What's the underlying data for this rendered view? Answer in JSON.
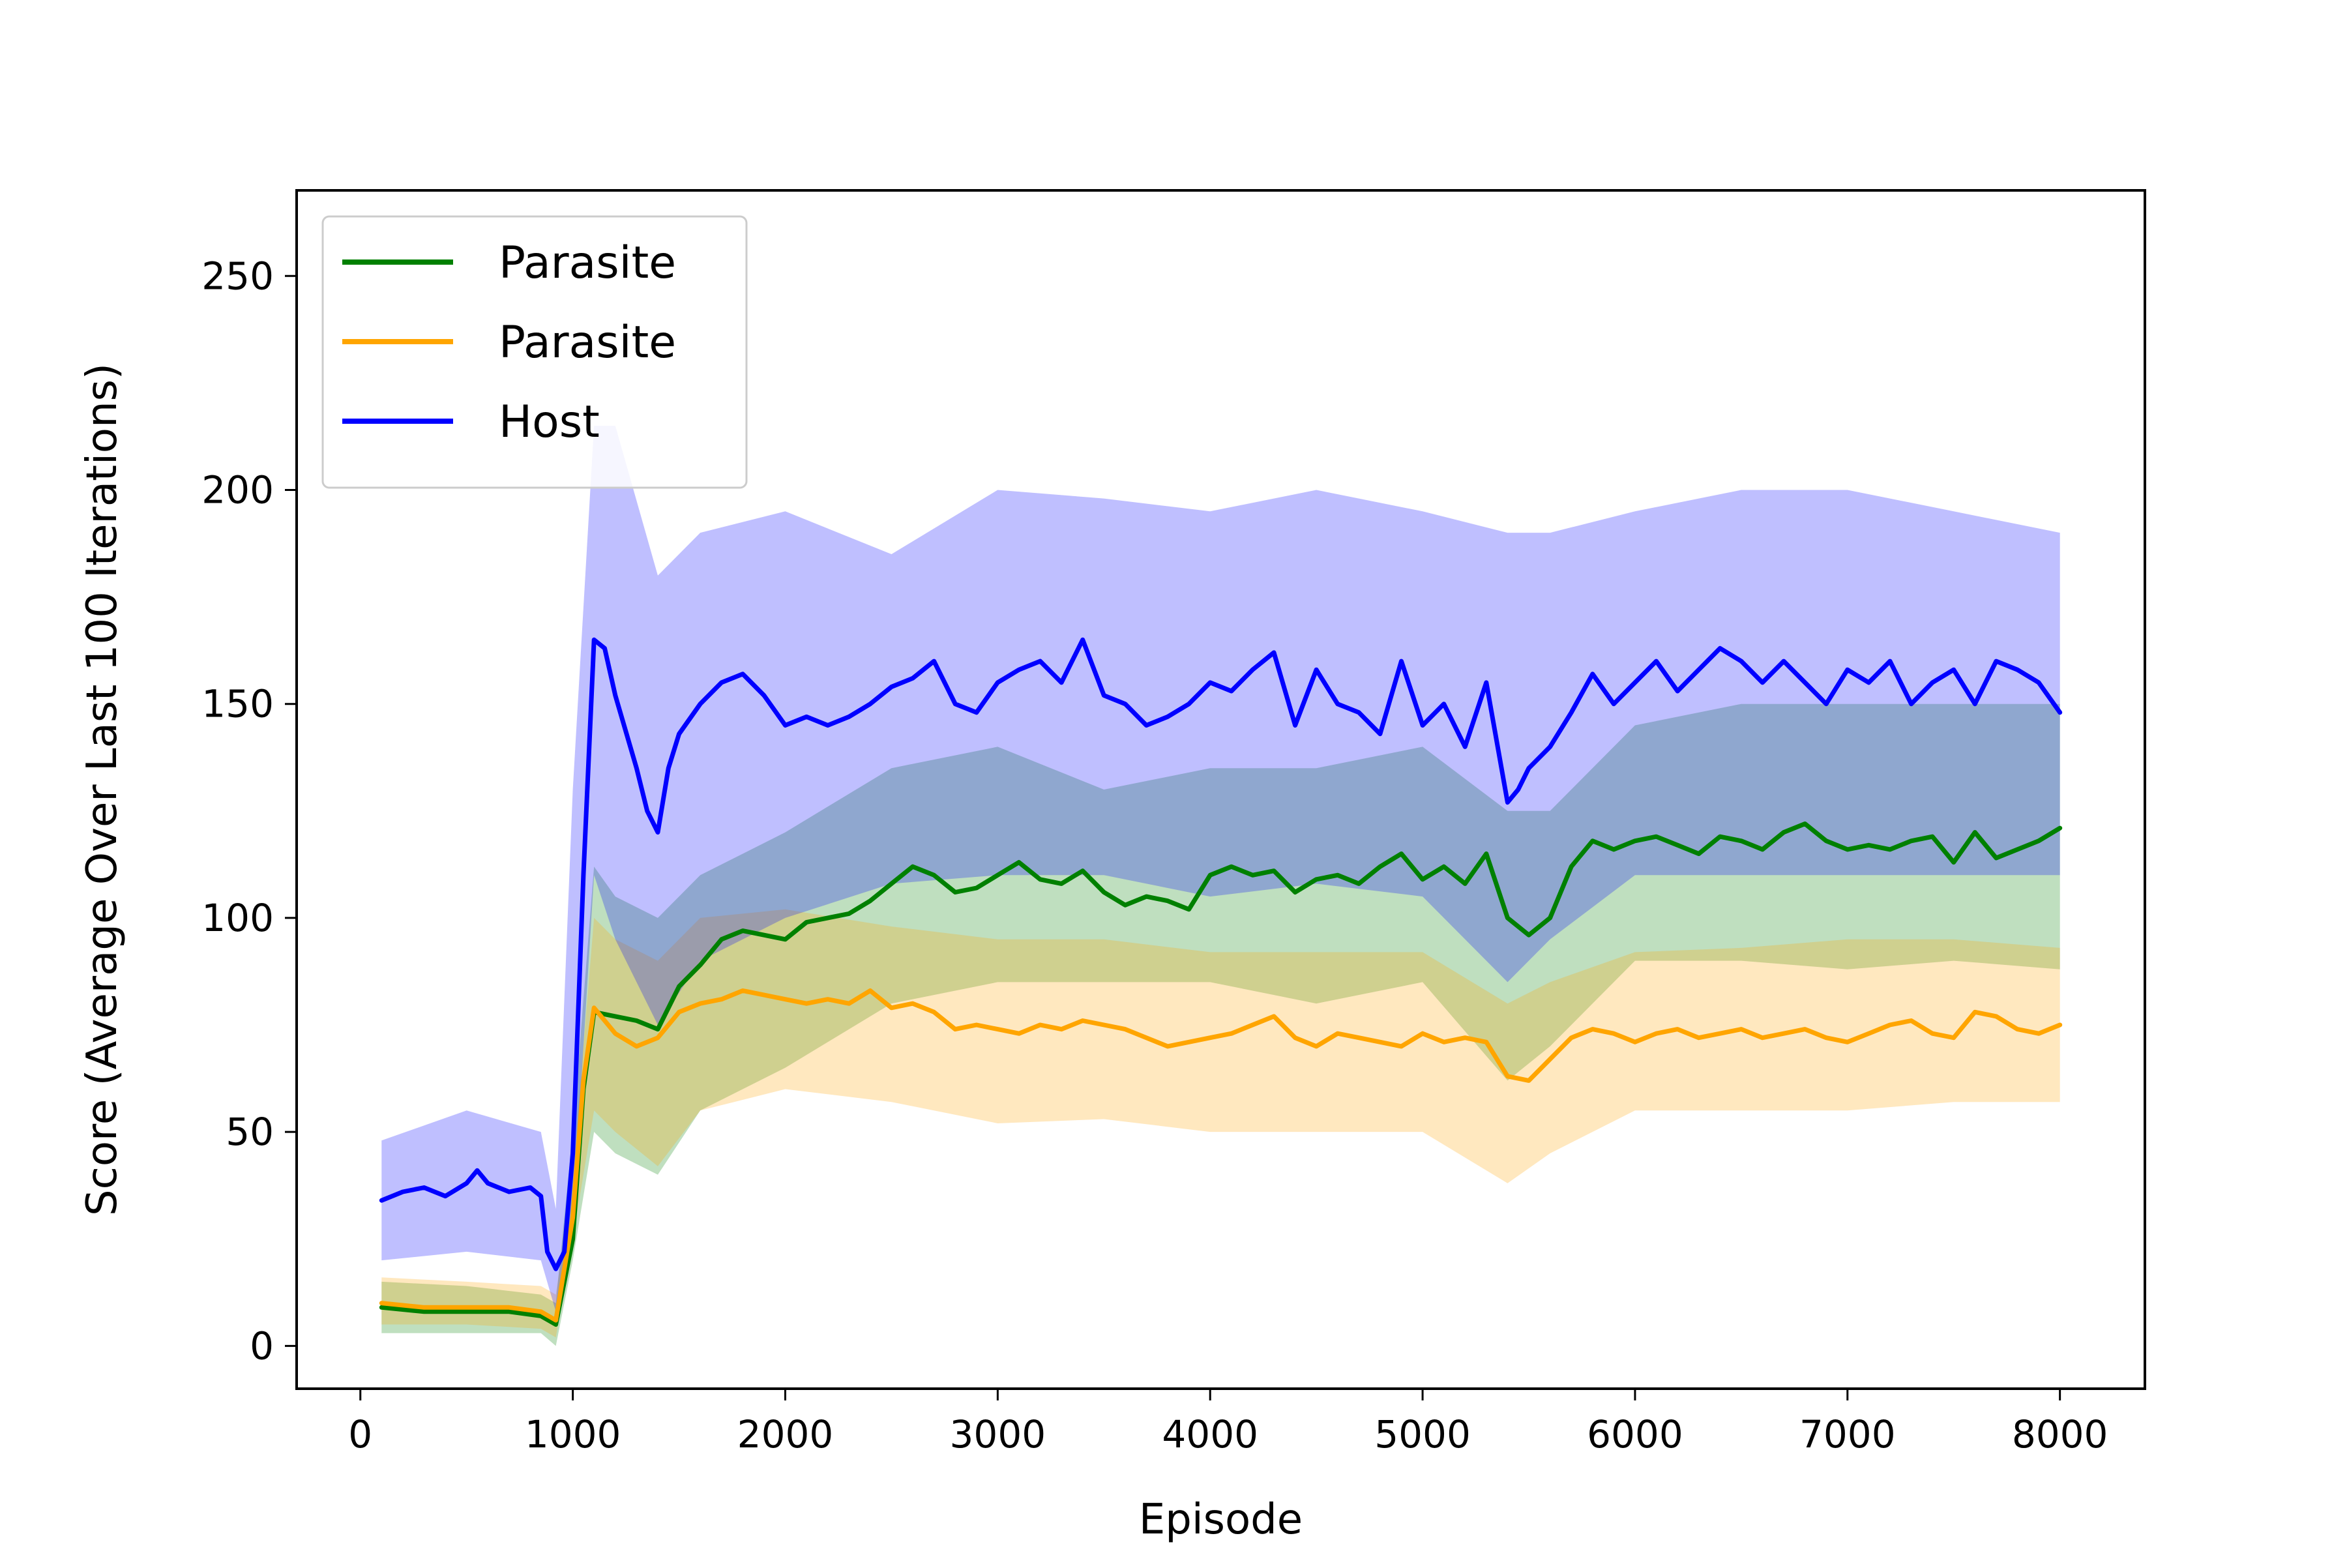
{
  "chart_data": {
    "type": "line",
    "title": "",
    "xlabel": "Episode",
    "ylabel": "Score (Average Over Last 100 Iterations)",
    "xlim": [
      -300,
      8400
    ],
    "ylim": [
      -10,
      270
    ],
    "xticks": [
      0,
      1000,
      2000,
      3000,
      4000,
      5000,
      6000,
      7000,
      8000
    ],
    "yticks": [
      0,
      50,
      100,
      150,
      200,
      250
    ],
    "legend_position": "top-left",
    "grid": false,
    "series": [
      {
        "name": "Parasite",
        "color": "#008000",
        "x": [
          100,
          300,
          500,
          700,
          850,
          920,
          1000,
          1050,
          1100,
          1200,
          1300,
          1400,
          1500,
          1600,
          1700,
          1800,
          1900,
          2000,
          2100,
          2200,
          2300,
          2400,
          2500,
          2600,
          2700,
          2800,
          2900,
          3000,
          3100,
          3200,
          3300,
          3400,
          3500,
          3600,
          3700,
          3800,
          3900,
          4000,
          4100,
          4200,
          4300,
          4400,
          4500,
          4600,
          4700,
          4800,
          4900,
          5000,
          5100,
          5200,
          5300,
          5400,
          5500,
          5600,
          5700,
          5800,
          5900,
          6000,
          6100,
          6200,
          6300,
          6400,
          6500,
          6600,
          6700,
          6800,
          6900,
          7000,
          7100,
          7200,
          7300,
          7400,
          7500,
          7600,
          7700,
          7800,
          7900,
          8000
        ],
        "y": [
          9,
          8,
          8,
          8,
          7,
          5,
          25,
          60,
          78,
          77,
          76,
          74,
          84,
          89,
          95,
          97,
          96,
          95,
          99,
          100,
          101,
          104,
          108,
          112,
          110,
          106,
          107,
          110,
          113,
          109,
          108,
          111,
          106,
          103,
          105,
          104,
          102,
          110,
          112,
          110,
          111,
          106,
          109,
          110,
          108,
          112,
          115,
          109,
          112,
          108,
          115,
          100,
          96,
          100,
          112,
          118,
          116,
          118,
          119,
          117,
          115,
          119,
          118,
          116,
          120,
          122,
          118,
          116,
          117,
          116,
          118,
          119,
          113,
          120,
          114,
          116,
          118,
          121
        ]
      },
      {
        "name": "Parasite",
        "color": "#FFA500",
        "x": [
          100,
          300,
          500,
          700,
          850,
          920,
          1000,
          1050,
          1100,
          1200,
          1300,
          1400,
          1500,
          1600,
          1700,
          1800,
          1900,
          2000,
          2100,
          2200,
          2300,
          2400,
          2500,
          2600,
          2700,
          2800,
          2900,
          3000,
          3100,
          3200,
          3300,
          3400,
          3500,
          3600,
          3700,
          3800,
          3900,
          4000,
          4100,
          4200,
          4300,
          4400,
          4500,
          4600,
          4700,
          4800,
          4900,
          5000,
          5100,
          5200,
          5300,
          5400,
          5500,
          5600,
          5700,
          5800,
          5900,
          6000,
          6100,
          6200,
          6300,
          6400,
          6500,
          6600,
          6700,
          6800,
          6900,
          7000,
          7100,
          7200,
          7300,
          7400,
          7500,
          7600,
          7700,
          7800,
          7900,
          8000
        ],
        "y": [
          10,
          9,
          9,
          9,
          8,
          6,
          30,
          62,
          79,
          73,
          70,
          72,
          78,
          80,
          81,
          83,
          82,
          81,
          80,
          81,
          80,
          83,
          79,
          80,
          78,
          74,
          75,
          74,
          73,
          75,
          74,
          76,
          75,
          74,
          72,
          70,
          71,
          72,
          73,
          75,
          77,
          72,
          70,
          73,
          72,
          71,
          70,
          73,
          71,
          72,
          71,
          63,
          62,
          67,
          72,
          74,
          73,
          71,
          73,
          74,
          72,
          73,
          74,
          72,
          73,
          74,
          72,
          71,
          73,
          75,
          76,
          73,
          72,
          78,
          77,
          74,
          73,
          75
        ]
      },
      {
        "name": "Host",
        "color": "#0000FF",
        "x": [
          100,
          200,
          300,
          400,
          500,
          550,
          600,
          700,
          800,
          850,
          880,
          920,
          960,
          1000,
          1050,
          1100,
          1150,
          1200,
          1300,
          1350,
          1400,
          1450,
          1500,
          1600,
          1700,
          1800,
          1900,
          2000,
          2100,
          2200,
          2300,
          2400,
          2500,
          2600,
          2700,
          2800,
          2900,
          3000,
          3100,
          3200,
          3300,
          3400,
          3500,
          3600,
          3700,
          3800,
          3900,
          4000,
          4100,
          4200,
          4300,
          4400,
          4500,
          4600,
          4700,
          4800,
          4900,
          5000,
          5100,
          5200,
          5300,
          5400,
          5450,
          5500,
          5600,
          5700,
          5800,
          5900,
          6000,
          6100,
          6200,
          6300,
          6400,
          6500,
          6600,
          6700,
          6800,
          6900,
          7000,
          7100,
          7200,
          7300,
          7400,
          7500,
          7600,
          7700,
          7800,
          7900,
          8000
        ],
        "y": [
          34,
          36,
          37,
          35,
          38,
          41,
          38,
          36,
          37,
          35,
          22,
          18,
          22,
          45,
          110,
          165,
          163,
          152,
          135,
          125,
          120,
          135,
          143,
          150,
          155,
          157,
          152,
          145,
          147,
          145,
          147,
          150,
          154,
          156,
          160,
          150,
          148,
          155,
          158,
          160,
          155,
          165,
          152,
          150,
          145,
          147,
          150,
          155,
          153,
          158,
          162,
          145,
          158,
          150,
          148,
          143,
          160,
          145,
          150,
          140,
          155,
          127,
          130,
          135,
          140,
          148,
          157,
          150,
          155,
          160,
          153,
          158,
          163,
          160,
          155,
          160,
          155,
          150,
          158,
          155,
          160,
          150,
          155,
          158,
          150,
          160,
          158,
          155,
          148
        ]
      }
    ],
    "bands": [
      {
        "name": "Parasite",
        "color": "#008000",
        "x": [
          100,
          500,
          850,
          920,
          1000,
          1100,
          1200,
          1400,
          1600,
          2000,
          2500,
          3000,
          3500,
          4000,
          4500,
          5000,
          5400,
          5600,
          6000,
          6500,
          7000,
          7500,
          8000
        ],
        "lower": [
          3,
          3,
          3,
          0,
          20,
          50,
          45,
          40,
          55,
          65,
          80,
          85,
          85,
          85,
          80,
          85,
          62,
          70,
          90,
          90,
          88,
          90,
          88
        ],
        "upper": [
          15,
          14,
          12,
          10,
          50,
          112,
          105,
          100,
          110,
          120,
          135,
          140,
          130,
          135,
          135,
          140,
          125,
          125,
          145,
          150,
          150,
          150,
          150
        ]
      },
      {
        "name": "Parasite",
        "color": "#FFA500",
        "x": [
          100,
          500,
          850,
          920,
          1000,
          1100,
          1200,
          1400,
          1600,
          2000,
          2500,
          3000,
          3500,
          4000,
          4500,
          5000,
          5400,
          5600,
          6000,
          6500,
          7000,
          7500,
          8000
        ],
        "lower": [
          5,
          5,
          4,
          2,
          25,
          55,
          50,
          42,
          55,
          60,
          57,
          52,
          53,
          50,
          50,
          50,
          38,
          45,
          55,
          55,
          55,
          57,
          57
        ],
        "upper": [
          16,
          15,
          14,
          12,
          40,
          100,
          95,
          90,
          100,
          102,
          98,
          95,
          95,
          92,
          92,
          92,
          80,
          85,
          92,
          93,
          95,
          95,
          93
        ]
      },
      {
        "name": "Host",
        "color": "#0000FF",
        "x": [
          100,
          500,
          850,
          920,
          1000,
          1100,
          1200,
          1400,
          1600,
          2000,
          2500,
          3000,
          3500,
          4000,
          4500,
          5000,
          5400,
          5600,
          6000,
          6500,
          7000,
          7500,
          8000
        ],
        "lower": [
          20,
          22,
          20,
          8,
          30,
          110,
          95,
          75,
          90,
          100,
          108,
          110,
          110,
          105,
          108,
          105,
          85,
          95,
          110,
          110,
          110,
          110,
          110
        ],
        "upper": [
          48,
          55,
          50,
          32,
          130,
          215,
          215,
          180,
          190,
          195,
          185,
          200,
          198,
          195,
          200,
          195,
          190,
          190,
          195,
          200,
          200,
          195,
          190
        ]
      }
    ]
  }
}
